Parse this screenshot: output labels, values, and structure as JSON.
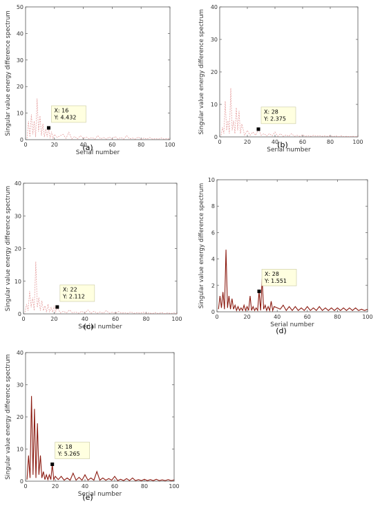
{
  "chart_data": [
    {
      "type": "line",
      "caption": "(a)",
      "xlabel": "Serial number",
      "ylabel": "Singular value energy difference spectrum",
      "xlim": [
        0,
        100
      ],
      "ylim": [
        0,
        50
      ],
      "xticks": [
        0,
        20,
        40,
        60,
        80,
        100
      ],
      "yticks": [
        0,
        10,
        20,
        30,
        40,
        50
      ],
      "grid": false,
      "line_color": "#e59b9b",
      "line_style": "dashed",
      "series": [
        {
          "x": [
            1,
            2,
            3,
            4,
            5,
            6,
            7,
            8,
            9,
            10,
            11,
            12,
            13,
            14,
            15,
            16,
            17,
            18,
            19,
            20,
            22,
            24,
            26,
            28,
            30,
            32,
            34,
            36,
            38,
            40,
            42,
            44,
            46,
            48,
            50,
            52,
            54,
            56,
            58,
            60,
            62,
            64,
            66,
            68,
            70,
            72,
            74,
            76,
            78,
            80,
            82,
            84,
            86,
            88,
            90,
            92,
            94,
            96,
            98,
            100
          ],
          "y": [
            0.5,
            7,
            1,
            9.5,
            2,
            7,
            1,
            15.5,
            3,
            9,
            1.5,
            6,
            1,
            4,
            1,
            4.4,
            0.5,
            3,
            0.5,
            2,
            0.8,
            1.5,
            2,
            0.5,
            2.8,
            0.3,
            1.2,
            0.3,
            1.5,
            0.4,
            1,
            0.3,
            0.8,
            0.2,
            1.5,
            0.3,
            0.8,
            0.2,
            1,
            0.3,
            1.2,
            0.2,
            0.8,
            0.2,
            1.5,
            0.3,
            0.6,
            0.2,
            1,
            0.2,
            0.6,
            0.2,
            0.8,
            0.2,
            0.4,
            0.2,
            0.6,
            0.2,
            0.4,
            0.2
          ]
        }
      ],
      "datatip": {
        "x": 16,
        "y": 4.432,
        "line1": "X: 16",
        "line2": "Y: 4.432"
      }
    },
    {
      "type": "line",
      "caption": "(b)",
      "xlabel": "Serial number",
      "ylabel": "Singular value energy difference spectrum",
      "xlim": [
        0,
        100
      ],
      "ylim": [
        0,
        40
      ],
      "xticks": [
        0,
        20,
        40,
        60,
        80,
        100
      ],
      "yticks": [
        0,
        10,
        20,
        30,
        40
      ],
      "grid": false,
      "line_color": "#e59b9b",
      "line_style": "dashed",
      "series": [
        {
          "x": [
            1,
            2,
            3,
            4,
            5,
            6,
            7,
            8,
            9,
            10,
            11,
            12,
            13,
            14,
            15,
            16,
            18,
            20,
            22,
            24,
            26,
            28,
            30,
            32,
            34,
            36,
            38,
            40,
            42,
            44,
            46,
            48,
            50,
            52,
            54,
            56,
            58,
            60,
            62,
            64,
            66,
            68,
            70,
            72,
            74,
            76,
            78,
            80,
            82,
            84,
            86,
            88,
            90,
            92,
            94,
            96,
            98,
            100
          ],
          "y": [
            0.5,
            3,
            1,
            11,
            2,
            5,
            1,
            15,
            2,
            5,
            1,
            9,
            2,
            8,
            1,
            4,
            0.5,
            2,
            0.5,
            1.5,
            0.5,
            2.375,
            0.5,
            1,
            0.3,
            1,
            0.3,
            1.5,
            0.2,
            1,
            0.2,
            0.6,
            0.2,
            1,
            0.2,
            0.5,
            0.2,
            0.6,
            0.2,
            0.4,
            0.2,
            0.5,
            0.2,
            0.4,
            0.2,
            0.3,
            0.2,
            0.4,
            0.1,
            0.3,
            0.1,
            0.3,
            0.1,
            0.2,
            0.1,
            0.2,
            0.1,
            0.2
          ]
        }
      ],
      "datatip": {
        "x": 28,
        "y": 2.375,
        "line1": "X: 28",
        "line2": "Y: 2.375"
      }
    },
    {
      "type": "line",
      "caption": "(c)",
      "xlabel": "Serial number",
      "ylabel": "Singular value energy difference spectrum",
      "xlim": [
        0,
        100
      ],
      "ylim": [
        0,
        40
      ],
      "xticks": [
        0,
        20,
        40,
        60,
        80,
        100
      ],
      "yticks": [
        0,
        10,
        20,
        30,
        40
      ],
      "grid": false,
      "line_color": "#e59b9b",
      "line_style": "dashed",
      "series": [
        {
          "x": [
            1,
            2,
            3,
            4,
            5,
            6,
            7,
            8,
            9,
            10,
            11,
            12,
            13,
            14,
            15,
            16,
            17,
            18,
            19,
            20,
            21,
            22,
            24,
            26,
            28,
            30,
            32,
            34,
            36,
            38,
            40,
            42,
            44,
            46,
            48,
            50,
            52,
            54,
            56,
            58,
            60,
            62,
            64,
            66,
            68,
            70,
            72,
            74,
            76,
            78,
            80,
            82,
            84,
            86,
            88,
            90,
            92,
            94,
            96,
            98,
            100
          ],
          "y": [
            0.5,
            3,
            1,
            7,
            2,
            5,
            1,
            16,
            2,
            5,
            1,
            4,
            1,
            2.5,
            0.5,
            3,
            0.5,
            2,
            0.5,
            2.5,
            0.5,
            2.112,
            0.3,
            0.8,
            0.3,
            1.2,
            0.3,
            0.6,
            0.2,
            0.8,
            0.2,
            1.2,
            0.2,
            0.8,
            0.2,
            0.6,
            0.2,
            1,
            0.2,
            0.5,
            0.2,
            0.7,
            0.2,
            0.4,
            0.2,
            0.6,
            0.2,
            0.4,
            0.2,
            0.5,
            0.2,
            0.3,
            0.1,
            0.4,
            0.1,
            0.4,
            0.1,
            0.3,
            0.1,
            0.3,
            0.1
          ]
        }
      ],
      "datatip": {
        "x": 22,
        "y": 2.112,
        "line1": "X: 22",
        "line2": "Y: 2.112"
      }
    },
    {
      "type": "line",
      "caption": "(d)",
      "xlabel": "Serial number",
      "ylabel": "Singular value energy difference spectrum",
      "xlim": [
        0,
        100
      ],
      "ylim": [
        0,
        10
      ],
      "xticks": [
        0,
        20,
        40,
        60,
        80,
        100
      ],
      "yticks": [
        0,
        2,
        4,
        6,
        8,
        10
      ],
      "grid": false,
      "line_color": "#8b1a10",
      "line_style": "solid",
      "series": [
        {
          "x": [
            1,
            2,
            3,
            4,
            5,
            6,
            7,
            8,
            9,
            10,
            11,
            12,
            13,
            14,
            15,
            16,
            17,
            18,
            19,
            20,
            21,
            22,
            23,
            24,
            25,
            26,
            27,
            28,
            29,
            30,
            31,
            32,
            33,
            34,
            35,
            36,
            37,
            38,
            40,
            42,
            44,
            46,
            48,
            50,
            52,
            54,
            56,
            58,
            60,
            62,
            64,
            66,
            68,
            70,
            72,
            74,
            76,
            78,
            80,
            82,
            84,
            86,
            88,
            90,
            92,
            94,
            96,
            98,
            100
          ],
          "y": [
            0.2,
            1.2,
            0.3,
            1.5,
            0.2,
            4.7,
            0.3,
            1.2,
            0.2,
            1,
            0.2,
            0.5,
            0.1,
            0.4,
            0.1,
            0.3,
            0.1,
            0.5,
            0.1,
            0.4,
            0.1,
            1.2,
            0.1,
            0.4,
            0.1,
            0.3,
            0.1,
            1.551,
            0.1,
            2.5,
            0.2,
            0.5,
            0.1,
            0.4,
            0.1,
            0.8,
            0.1,
            0.4,
            0.3,
            0.2,
            0.5,
            0.1,
            0.4,
            0.1,
            0.4,
            0.1,
            0.3,
            0.1,
            0.4,
            0.1,
            0.3,
            0.1,
            0.4,
            0.1,
            0.3,
            0.1,
            0.3,
            0.1,
            0.3,
            0.1,
            0.3,
            0.1,
            0.3,
            0.1,
            0.3,
            0.1,
            0.2,
            0.1,
            0.2
          ]
        }
      ],
      "datatip": {
        "x": 28,
        "y": 1.551,
        "line1": "X: 28",
        "line2": "Y: 1.551"
      }
    },
    {
      "type": "line",
      "caption": "(e)",
      "xlabel": "Serial number",
      "ylabel": "Singular value energy difference spectrum",
      "xlim": [
        0,
        100
      ],
      "ylim": [
        0,
        40
      ],
      "xticks": [
        0,
        20,
        40,
        60,
        80,
        100
      ],
      "yticks": [
        0,
        10,
        20,
        30,
        40
      ],
      "grid": false,
      "line_color": "#8b1a10",
      "line_style": "solid",
      "series": [
        {
          "x": [
            1,
            2,
            3,
            4,
            5,
            6,
            7,
            8,
            9,
            10,
            11,
            12,
            13,
            14,
            15,
            16,
            17,
            18,
            19,
            20,
            22,
            24,
            26,
            28,
            30,
            32,
            34,
            36,
            38,
            40,
            42,
            44,
            46,
            48,
            50,
            52,
            54,
            56,
            58,
            60,
            62,
            64,
            66,
            68,
            70,
            72,
            74,
            76,
            78,
            80,
            82,
            84,
            86,
            88,
            90,
            92,
            94,
            96,
            98,
            100
          ],
          "y": [
            0.5,
            8,
            1,
            26.5,
            2,
            22.5,
            1,
            18,
            2,
            8,
            1,
            3,
            0.5,
            2,
            0.5,
            2,
            0.5,
            5.265,
            0.5,
            1.5,
            0.5,
            1.5,
            0.3,
            1,
            0.3,
            2.5,
            0.3,
            1.2,
            0.3,
            2,
            0.3,
            1,
            0.3,
            3,
            0.3,
            1,
            0.3,
            0.8,
            0.3,
            1.5,
            0.2,
            0.6,
            0.2,
            0.8,
            0.2,
            1,
            0.2,
            0.5,
            0.2,
            0.6,
            0.2,
            0.5,
            0.2,
            0.6,
            0.2,
            0.4,
            0.2,
            0.5,
            0.2,
            0.4
          ]
        }
      ],
      "datatip": {
        "x": 18,
        "y": 5.265,
        "line1": "X: 18",
        "line2": "Y: 5.265"
      }
    }
  ]
}
